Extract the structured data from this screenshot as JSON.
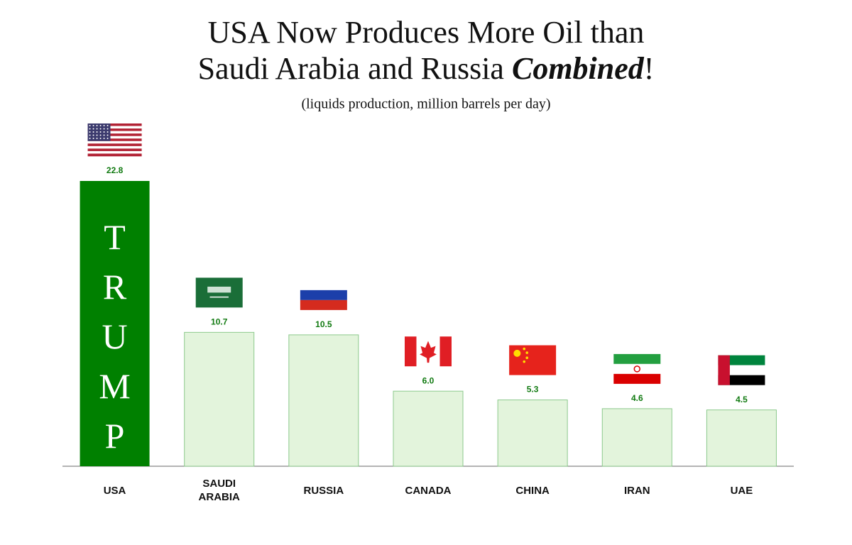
{
  "chart_data": {
    "type": "bar",
    "title": [
      "USA Now Produces More Oil than",
      "Saudi Arabia and Russia ",
      "Combined",
      "!"
    ],
    "subtitle": "(liquids production, million barrels per day)",
    "categories": [
      "USA",
      "SAUDI ARABIA",
      "RUSSIA",
      "CANADA",
      "CHINA",
      "IRAN",
      "UAE"
    ],
    "values": [
      22.8,
      10.7,
      10.5,
      6.0,
      5.3,
      4.6,
      4.5
    ],
    "value_labels": [
      "22.8",
      "10.7",
      "10.5",
      "6.0",
      "5.3",
      "4.6",
      "4.5"
    ],
    "colors": [
      "#008000",
      "#e3f4dc",
      "#e3f4dc",
      "#e3f4dc",
      "#e3f4dc",
      "#e3f4dc",
      "#e3f4dc"
    ],
    "annotation": "TRUMP"
  }
}
